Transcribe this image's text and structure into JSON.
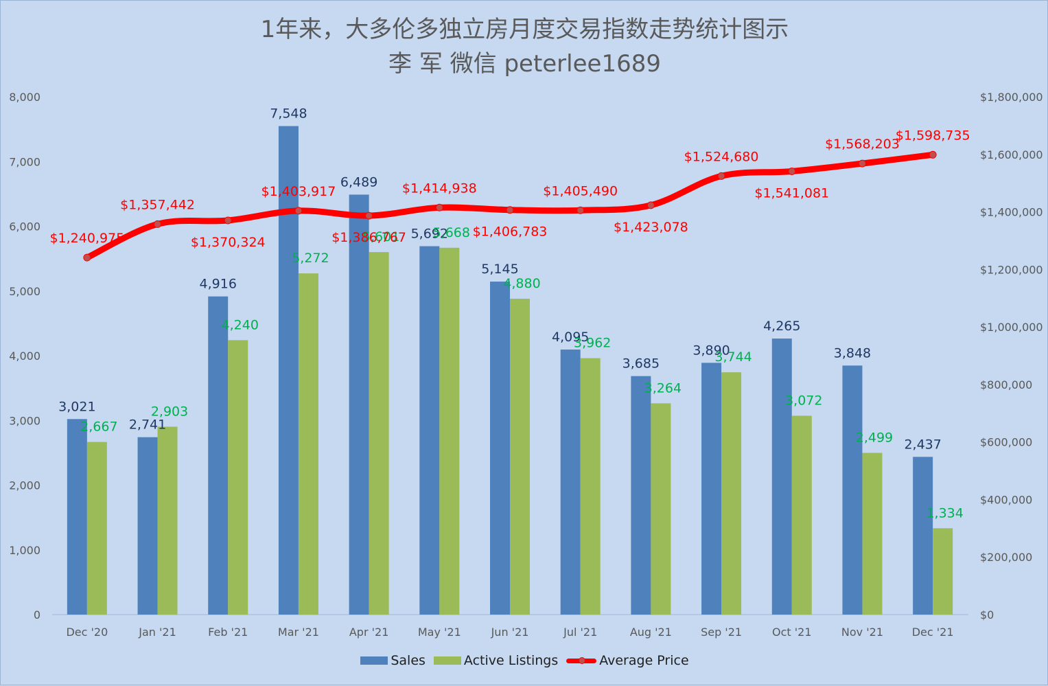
{
  "chart_data": {
    "type": "bar",
    "title": "1年来，大多伦多独立房月度交易指数走势统计图示",
    "subtitle": "李 军  微信 peterlee1689",
    "categories": [
      "Dec '20",
      "Jan '21",
      "Feb '21",
      "Mar '21",
      "Apr '21",
      "May '21",
      "Jun '21",
      "Jul '21",
      "Aug '21",
      "Sep '21",
      "Oct '21",
      "Nov '21",
      "Dec '21"
    ],
    "series": [
      {
        "name": "Sales",
        "type": "bar",
        "axis": "left",
        "color": "#4f81bd",
        "values": [
          3021,
          2741,
          4916,
          7548,
          6489,
          5692,
          5145,
          4095,
          3685,
          3890,
          4265,
          3848,
          2437
        ],
        "labels": [
          "3,021",
          "2,741",
          "4,916",
          "7,548",
          "6,489",
          "5,692",
          "5,145",
          "4,095",
          "3,685",
          "3,890",
          "4,265",
          "3,848",
          "2,437"
        ]
      },
      {
        "name": "Active Listings",
        "type": "bar",
        "axis": "left",
        "color": "#9bbb59",
        "values": [
          2667,
          2903,
          4240,
          5272,
          5601,
          5668,
          4880,
          3962,
          3264,
          3744,
          3072,
          2499,
          1334
        ],
        "labels": [
          "2,667",
          "2,903",
          "4,240",
          "5,272",
          "5,601",
          "5,668",
          "4,880",
          "3,962",
          "3,264",
          "3,744",
          "3,072",
          "2,499",
          "1,334"
        ]
      },
      {
        "name": "Average Price",
        "type": "line",
        "axis": "right",
        "color": "#ff0000",
        "values": [
          1240975,
          1357442,
          1370324,
          1403917,
          1386767,
          1414938,
          1406783,
          1405490,
          1423078,
          1524680,
          1541081,
          1568203,
          1598735
        ],
        "labels": [
          "$1,240,975",
          "$1,357,442",
          "$1,370,324",
          "$1,403,917",
          "$1,386,767",
          "$1,414,938",
          "$1,406,783",
          "$1,405,490",
          "$1,423,078",
          "$1,524,680",
          "$1,541,081",
          "$1,568,203",
          "$1,598,735"
        ]
      }
    ],
    "y_left": {
      "range": [
        0,
        8000
      ],
      "ticks": [
        0,
        1000,
        2000,
        3000,
        4000,
        5000,
        6000,
        7000,
        8000
      ],
      "tick_labels": [
        "0",
        "1,000",
        "2,000",
        "3,000",
        "4,000",
        "5,000",
        "6,000",
        "7,000",
        "8,000"
      ]
    },
    "y_right": {
      "range": [
        0,
        1800000
      ],
      "ticks": [
        0,
        200000,
        400000,
        600000,
        800000,
        1000000,
        1200000,
        1400000,
        1600000,
        1800000
      ],
      "tick_labels": [
        "$0",
        "$200,000",
        "$400,000",
        "$600,000",
        "$800,000",
        "$1,000,000",
        "$1,200,000",
        "$1,400,000",
        "$1,600,000",
        "$1,800,000"
      ]
    },
    "grid": false,
    "legend": "bottom",
    "xlabel": "",
    "ylabel": ""
  }
}
